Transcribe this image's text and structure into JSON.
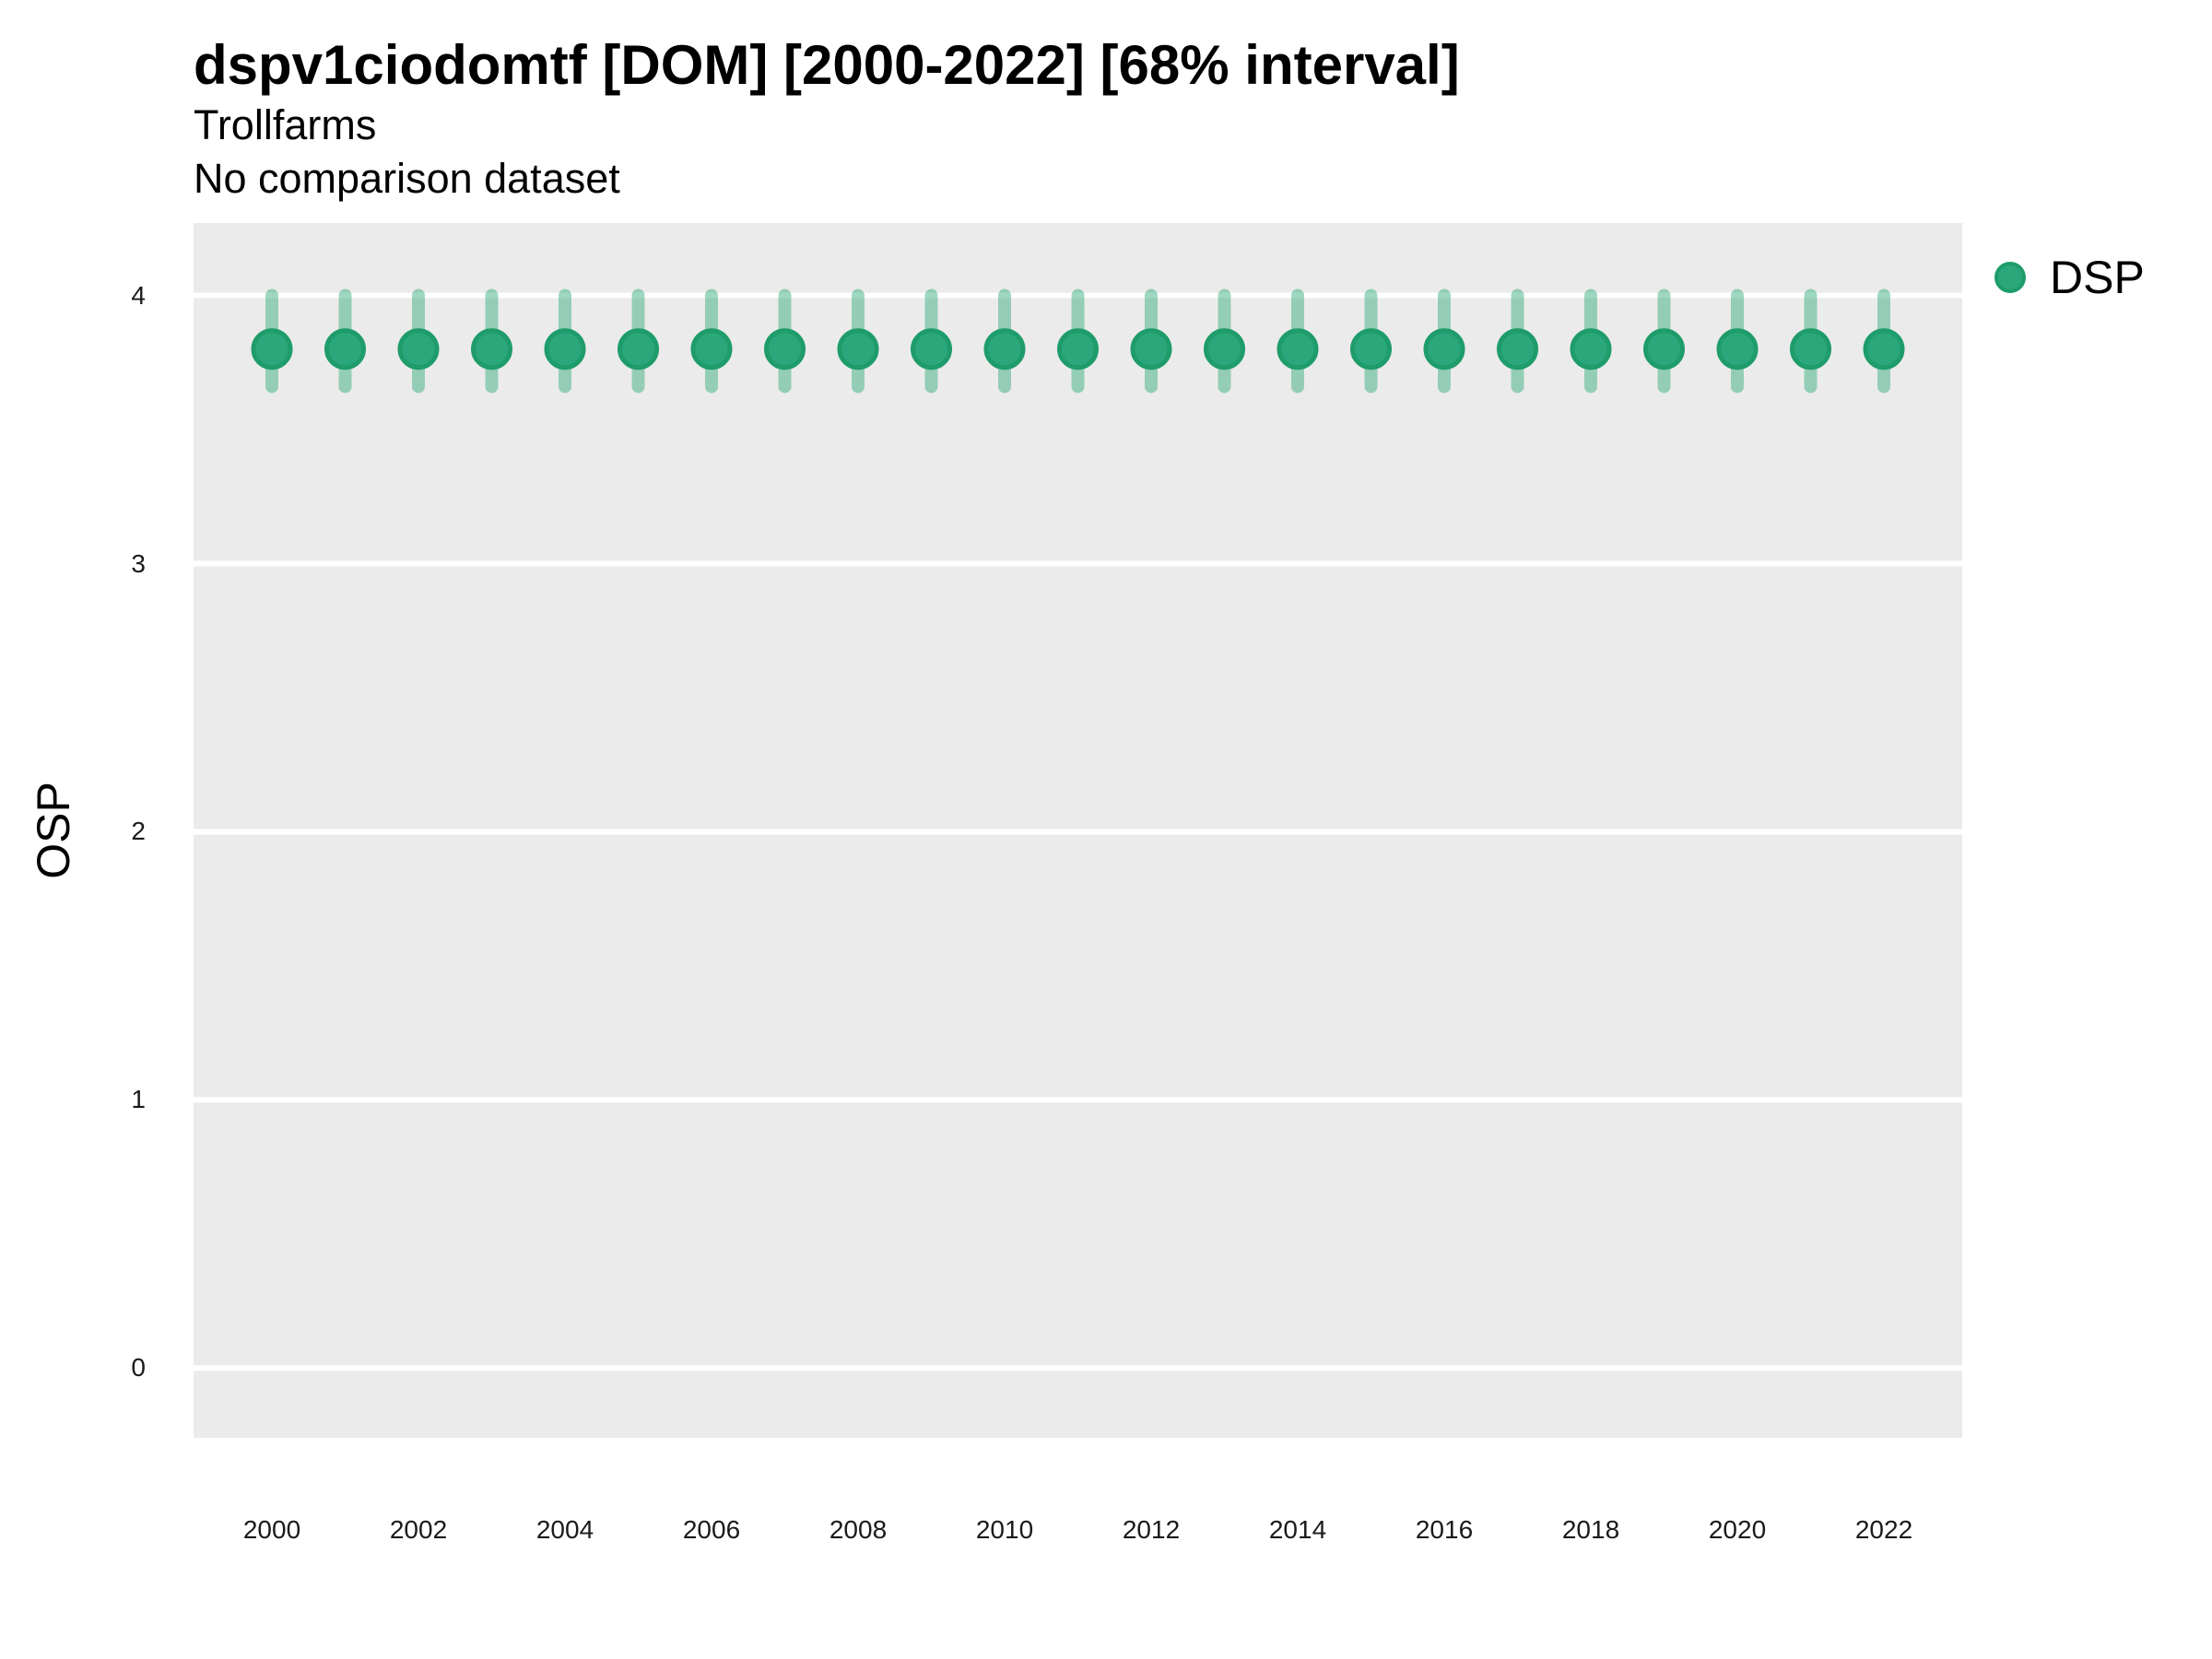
{
  "chart_data": {
    "type": "scatter",
    "title": "dspv1ciodomtf [DOM] [2000-2022] [68% interval]",
    "subtitle": "Trollfarms",
    "note": "No comparison dataset",
    "xlabel": "",
    "ylabel": "OSP",
    "ylim": [
      -0.26,
      4.27
    ],
    "yticks": [
      0,
      1,
      2,
      3,
      4
    ],
    "xticks": [
      2000,
      2002,
      2004,
      2006,
      2008,
      2010,
      2012,
      2014,
      2016,
      2018,
      2020,
      2022
    ],
    "x": [
      2000,
      2001,
      2002,
      2003,
      2004,
      2005,
      2006,
      2007,
      2008,
      2009,
      2010,
      2011,
      2012,
      2013,
      2014,
      2015,
      2016,
      2017,
      2018,
      2019,
      2020,
      2021,
      2022
    ],
    "series": [
      {
        "name": "DSP",
        "interval_label": "68%",
        "values": [
          3.8,
          3.8,
          3.8,
          3.8,
          3.8,
          3.8,
          3.8,
          3.8,
          3.8,
          3.8,
          3.8,
          3.8,
          3.8,
          3.8,
          3.8,
          3.8,
          3.8,
          3.8,
          3.8,
          3.8,
          3.8,
          3.8,
          3.8
        ],
        "interval_low": [
          3.66,
          3.66,
          3.66,
          3.66,
          3.66,
          3.66,
          3.66,
          3.66,
          3.66,
          3.66,
          3.66,
          3.66,
          3.66,
          3.66,
          3.66,
          3.66,
          3.66,
          3.66,
          3.66,
          3.66,
          3.66,
          3.66,
          3.66
        ],
        "interval_high": [
          4.0,
          4.0,
          4.0,
          4.0,
          4.0,
          4.0,
          4.0,
          4.0,
          4.0,
          4.0,
          4.0,
          4.0,
          4.0,
          4.0,
          4.0,
          4.0,
          4.0,
          4.0,
          4.0,
          4.0,
          4.0,
          4.0,
          4.0
        ]
      }
    ],
    "legend_position": "right",
    "grid": true,
    "colors": {
      "panel_bg": "#EBEBEB",
      "grid": "#FFFFFF",
      "point": "#2BA87B",
      "point_border": "#1E9C6A",
      "interval": "#2AA876",
      "interval_opacity": 0.45,
      "text": "#000000",
      "tick_text": "#1A1A1A"
    }
  }
}
